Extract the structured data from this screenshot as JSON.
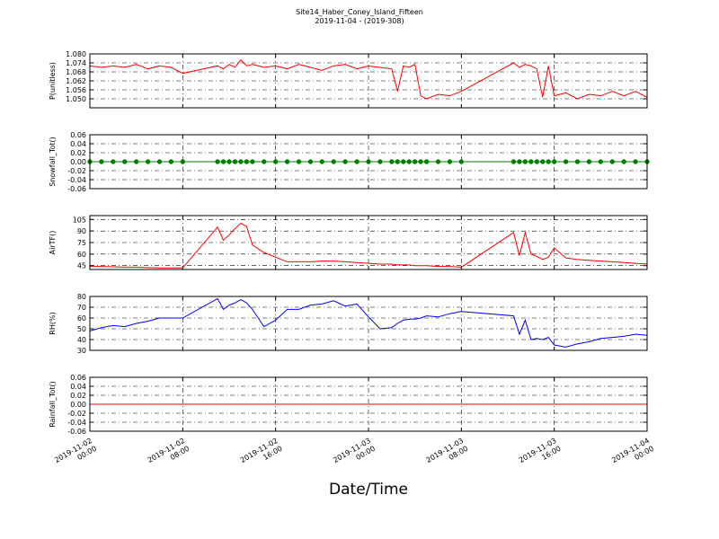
{
  "title": "Site14_Haber_Coney_Island_Fifteen",
  "subtitle": "2019-11-04 - (2019-308)",
  "xlabel": "Date/Time",
  "chart_data": [
    {
      "type": "line",
      "ylabel": "P(unitless)",
      "color": "#ff0000",
      "grid": true,
      "xlim": [
        "2019-11-02 00:00",
        "2019-11-04 00:00"
      ],
      "xticks": [
        "2019-11-02 00:00",
        "2019-11-02 08:00",
        "2019-11-02 16:00",
        "2019-11-03 00:00",
        "2019-11-03 08:00",
        "2019-11-03 16:00",
        "2019-11-04 00:00"
      ],
      "ylim": [
        1.044,
        1.08
      ],
      "yticks": [
        {
          "value": 1.05,
          "label": "1.050"
        },
        1.056,
        1.062,
        1.068,
        1.074,
        {
          "value": 1.08,
          "label": "1.080"
        }
      ],
      "x": [
        "2019-11-02 00:00",
        "2019-11-02 01:00",
        "2019-11-02 02:00",
        "2019-11-02 03:00",
        "2019-11-02 04:00",
        "2019-11-02 05:00",
        "2019-11-02 06:00",
        "2019-11-02 07:00",
        "2019-11-02 08:00",
        "2019-11-02 11:00",
        "2019-11-02 11:30",
        "2019-11-02 12:00",
        "2019-11-02 12:30",
        "2019-11-02 13:00",
        "2019-11-02 13:30",
        "2019-11-02 14:00",
        "2019-11-02 15:00",
        "2019-11-02 16:00",
        "2019-11-02 17:00",
        "2019-11-02 18:00",
        "2019-11-02 19:00",
        "2019-11-02 20:00",
        "2019-11-02 21:00",
        "2019-11-02 22:00",
        "2019-11-02 23:00",
        "2019-11-03 00:00",
        "2019-11-03 01:00",
        "2019-11-03 02:00",
        "2019-11-03 02:30",
        "2019-11-03 03:00",
        "2019-11-03 03:30",
        "2019-11-03 04:00",
        "2019-11-03 04:30",
        "2019-11-03 05:00",
        "2019-11-03 06:00",
        "2019-11-03 07:00",
        "2019-11-03 08:00",
        "2019-11-03 12:30",
        "2019-11-03 13:00",
        "2019-11-03 13:30",
        "2019-11-03 14:00",
        "2019-11-03 14:30",
        "2019-11-03 15:00",
        "2019-11-03 15:30",
        "2019-11-03 16:00",
        "2019-11-03 17:00",
        "2019-11-03 18:00",
        "2019-11-03 19:00",
        "2019-11-03 20:00",
        "2019-11-03 21:00",
        "2019-11-03 22:00",
        "2019-11-03 23:00",
        "2019-11-04 00:00"
      ],
      "values": [
        1.072,
        1.071,
        1.072,
        1.071,
        1.073,
        1.07,
        1.072,
        1.071,
        1.067,
        1.072,
        1.07,
        1.073,
        1.071,
        1.076,
        1.072,
        1.073,
        1.071,
        1.072,
        1.07,
        1.073,
        1.071,
        1.069,
        1.072,
        1.073,
        1.07,
        1.072,
        1.071,
        1.07,
        1.055,
        1.072,
        1.071,
        1.073,
        1.052,
        1.05,
        1.053,
        1.052,
        1.055,
        1.074,
        1.071,
        1.073,
        1.072,
        1.07,
        1.051,
        1.072,
        1.052,
        1.054,
        1.05,
        1.053,
        1.052,
        1.055,
        1.052,
        1.055,
        1.051
      ]
    },
    {
      "type": "line",
      "ylabel": "Snowfall_Tot()",
      "color": "#008000",
      "marker": "o",
      "grid": true,
      "xlim": [
        "2019-11-02 00:00",
        "2019-11-04 00:00"
      ],
      "xticks": [
        "2019-11-02 00:00",
        "2019-11-02 08:00",
        "2019-11-02 16:00",
        "2019-11-03 00:00",
        "2019-11-03 08:00",
        "2019-11-03 16:00",
        "2019-11-04 00:00"
      ],
      "ylim": [
        -0.06,
        0.06
      ],
      "yticks": [
        -0.06,
        -0.04,
        -0.02,
        {
          "value": 0,
          "label": "0.00"
        },
        0.02,
        0.04,
        0.06
      ],
      "x": [
        "2019-11-02 00:00",
        "2019-11-02 01:00",
        "2019-11-02 02:00",
        "2019-11-02 03:00",
        "2019-11-02 04:00",
        "2019-11-02 05:00",
        "2019-11-02 06:00",
        "2019-11-02 07:00",
        "2019-11-02 08:00",
        "2019-11-02 11:00",
        "2019-11-02 11:30",
        "2019-11-02 12:00",
        "2019-11-02 12:30",
        "2019-11-02 13:00",
        "2019-11-02 13:30",
        "2019-11-02 14:00",
        "2019-11-02 15:00",
        "2019-11-02 16:00",
        "2019-11-02 17:00",
        "2019-11-02 18:00",
        "2019-11-02 19:00",
        "2019-11-02 20:00",
        "2019-11-02 21:00",
        "2019-11-02 22:00",
        "2019-11-02 23:00",
        "2019-11-03 00:00",
        "2019-11-03 01:00",
        "2019-11-03 02:00",
        "2019-11-03 02:30",
        "2019-11-03 03:00",
        "2019-11-03 03:30",
        "2019-11-03 04:00",
        "2019-11-03 04:30",
        "2019-11-03 05:00",
        "2019-11-03 06:00",
        "2019-11-03 07:00",
        "2019-11-03 08:00",
        "2019-11-03 12:30",
        "2019-11-03 13:00",
        "2019-11-03 13:30",
        "2019-11-03 14:00",
        "2019-11-03 14:30",
        "2019-11-03 15:00",
        "2019-11-03 15:30",
        "2019-11-03 16:00",
        "2019-11-03 17:00",
        "2019-11-03 18:00",
        "2019-11-03 19:00",
        "2019-11-03 20:00",
        "2019-11-03 21:00",
        "2019-11-03 22:00",
        "2019-11-03 23:00",
        "2019-11-04 00:00"
      ],
      "values": [
        0,
        0,
        0,
        0,
        0,
        0,
        0,
        0,
        0,
        0,
        0,
        0,
        0,
        0,
        0,
        0,
        0,
        0,
        0,
        0,
        0,
        0,
        0,
        0,
        0,
        0,
        0,
        0,
        0,
        0,
        0,
        0,
        0,
        0,
        0,
        0,
        0,
        0,
        0,
        0,
        0,
        0,
        0,
        0,
        0,
        0,
        0,
        0,
        0,
        0,
        0,
        0,
        0
      ]
    },
    {
      "type": "line",
      "ylabel": "AirTF()",
      "color": "#ff0000",
      "grid": true,
      "xlim": [
        "2019-11-02 00:00",
        "2019-11-04 00:00"
      ],
      "xticks": [
        "2019-11-02 00:00",
        "2019-11-02 08:00",
        "2019-11-02 16:00",
        "2019-11-03 00:00",
        "2019-11-03 08:00",
        "2019-11-03 16:00",
        "2019-11-04 00:00"
      ],
      "ylim": [
        40,
        110
      ],
      "yticks": [
        45,
        60,
        75,
        90,
        105
      ],
      "x": [
        "2019-11-02 00:00",
        "2019-11-02 01:00",
        "2019-11-02 02:00",
        "2019-11-02 03:00",
        "2019-11-02 04:00",
        "2019-11-02 05:00",
        "2019-11-02 06:00",
        "2019-11-02 07:00",
        "2019-11-02 08:00",
        "2019-11-02 11:00",
        "2019-11-02 11:30",
        "2019-11-02 12:00",
        "2019-11-02 12:30",
        "2019-11-02 13:00",
        "2019-11-02 13:30",
        "2019-11-02 14:00",
        "2019-11-02 15:00",
        "2019-11-02 16:00",
        "2019-11-02 17:00",
        "2019-11-02 18:00",
        "2019-11-02 19:00",
        "2019-11-02 20:00",
        "2019-11-02 21:00",
        "2019-11-02 22:00",
        "2019-11-02 23:00",
        "2019-11-03 00:00",
        "2019-11-03 01:00",
        "2019-11-03 02:00",
        "2019-11-03 02:30",
        "2019-11-03 03:00",
        "2019-11-03 03:30",
        "2019-11-03 04:00",
        "2019-11-03 04:30",
        "2019-11-03 05:00",
        "2019-11-03 06:00",
        "2019-11-03 07:00",
        "2019-11-03 08:00",
        "2019-11-03 12:30",
        "2019-11-03 13:00",
        "2019-11-03 13:30",
        "2019-11-03 14:00",
        "2019-11-03 14:30",
        "2019-11-03 15:00",
        "2019-11-03 15:30",
        "2019-11-03 16:00",
        "2019-11-03 17:00",
        "2019-11-03 18:00",
        "2019-11-03 19:00",
        "2019-11-03 20:00",
        "2019-11-03 21:00",
        "2019-11-03 22:00",
        "2019-11-03 23:00",
        "2019-11-04 00:00"
      ],
      "values": [
        44,
        44,
        43.5,
        43,
        43,
        42.5,
        42,
        42,
        42,
        95,
        78,
        85,
        93,
        100,
        96,
        72,
        62,
        56,
        50,
        50,
        50,
        51,
        51,
        50,
        49,
        48,
        47,
        47,
        46,
        46,
        46,
        45,
        45,
        45,
        44,
        44,
        43,
        88,
        58,
        88,
        60,
        57,
        53,
        56,
        68,
        55,
        53,
        52,
        51,
        50,
        49,
        48,
        47
      ]
    },
    {
      "type": "line",
      "ylabel": "RH(%)",
      "color": "#0000ff",
      "grid": true,
      "xlim": [
        "2019-11-02 00:00",
        "2019-11-04 00:00"
      ],
      "xticks": [
        "2019-11-02 00:00",
        "2019-11-02 08:00",
        "2019-11-02 16:00",
        "2019-11-03 00:00",
        "2019-11-03 08:00",
        "2019-11-03 16:00",
        "2019-11-04 00:00"
      ],
      "ylim": [
        30,
        80
      ],
      "yticks": [
        30,
        40,
        50,
        60,
        70,
        80
      ],
      "x": [
        "2019-11-02 00:00",
        "2019-11-02 01:00",
        "2019-11-02 02:00",
        "2019-11-02 03:00",
        "2019-11-02 04:00",
        "2019-11-02 05:00",
        "2019-11-02 06:00",
        "2019-11-02 07:00",
        "2019-11-02 08:00",
        "2019-11-02 11:00",
        "2019-11-02 11:30",
        "2019-11-02 12:00",
        "2019-11-02 12:30",
        "2019-11-02 13:00",
        "2019-11-02 13:30",
        "2019-11-02 14:00",
        "2019-11-02 15:00",
        "2019-11-02 16:00",
        "2019-11-02 17:00",
        "2019-11-02 18:00",
        "2019-11-02 19:00",
        "2019-11-02 20:00",
        "2019-11-02 21:00",
        "2019-11-02 22:00",
        "2019-11-02 23:00",
        "2019-11-03 00:00",
        "2019-11-03 01:00",
        "2019-11-03 02:00",
        "2019-11-03 02:30",
        "2019-11-03 03:00",
        "2019-11-03 03:30",
        "2019-11-03 04:00",
        "2019-11-03 04:30",
        "2019-11-03 05:00",
        "2019-11-03 06:00",
        "2019-11-03 07:00",
        "2019-11-03 08:00",
        "2019-11-03 12:30",
        "2019-11-03 13:00",
        "2019-11-03 13:30",
        "2019-11-03 14:00",
        "2019-11-03 14:30",
        "2019-11-03 15:00",
        "2019-11-03 15:30",
        "2019-11-03 16:00",
        "2019-11-03 17:00",
        "2019-11-03 18:00",
        "2019-11-03 19:00",
        "2019-11-03 20:00",
        "2019-11-03 21:00",
        "2019-11-03 22:00",
        "2019-11-03 23:00",
        "2019-11-04 00:00"
      ],
      "values": [
        48,
        51,
        53,
        52,
        55,
        57,
        60,
        60,
        60,
        78,
        68,
        72,
        74,
        77,
        74,
        68,
        52,
        58,
        68,
        68,
        72,
        73,
        76,
        71,
        73,
        61,
        50,
        51,
        55,
        58,
        59,
        59,
        60,
        62,
        61,
        64,
        66,
        62,
        45,
        58,
        40,
        41,
        40,
        42,
        35,
        33,
        36,
        38,
        41,
        42,
        43,
        45,
        44
      ]
    },
    {
      "type": "line",
      "ylabel": "Rainfall_Tot()",
      "color": "#ff0000",
      "grid": true,
      "xlim": [
        "2019-11-02 00:00",
        "2019-11-04 00:00"
      ],
      "xticks": [
        "2019-11-02 00:00",
        "2019-11-02 08:00",
        "2019-11-02 16:00",
        "2019-11-03 00:00",
        "2019-11-03 08:00",
        "2019-11-03 16:00",
        "2019-11-04 00:00"
      ],
      "ylim": [
        -0.06,
        0.06
      ],
      "yticks": [
        -0.06,
        -0.04,
        -0.02,
        {
          "value": 0,
          "label": "0.00"
        },
        0.02,
        0.04,
        0.06
      ],
      "x": [
        "2019-11-02 00:00",
        "2019-11-02 01:00",
        "2019-11-02 02:00",
        "2019-11-02 03:00",
        "2019-11-02 04:00",
        "2019-11-02 05:00",
        "2019-11-02 06:00",
        "2019-11-02 07:00",
        "2019-11-02 08:00",
        "2019-11-02 11:00",
        "2019-11-02 11:30",
        "2019-11-02 12:00",
        "2019-11-02 12:30",
        "2019-11-02 13:00",
        "2019-11-02 13:30",
        "2019-11-02 14:00",
        "2019-11-02 15:00",
        "2019-11-02 16:00",
        "2019-11-02 17:00",
        "2019-11-02 18:00",
        "2019-11-02 19:00",
        "2019-11-02 20:00",
        "2019-11-02 21:00",
        "2019-11-02 22:00",
        "2019-11-02 23:00",
        "2019-11-03 00:00",
        "2019-11-03 01:00",
        "2019-11-03 02:00",
        "2019-11-03 02:30",
        "2019-11-03 03:00",
        "2019-11-03 03:30",
        "2019-11-03 04:00",
        "2019-11-03 04:30",
        "2019-11-03 05:00",
        "2019-11-03 06:00",
        "2019-11-03 07:00",
        "2019-11-03 08:00",
        "2019-11-03 12:30",
        "2019-11-03 13:00",
        "2019-11-03 13:30",
        "2019-11-03 14:00",
        "2019-11-03 14:30",
        "2019-11-03 15:00",
        "2019-11-03 15:30",
        "2019-11-03 16:00",
        "2019-11-03 17:00",
        "2019-11-03 18:00",
        "2019-11-03 19:00",
        "2019-11-03 20:00",
        "2019-11-03 21:00",
        "2019-11-03 22:00",
        "2019-11-03 23:00",
        "2019-11-04 00:00"
      ],
      "values": [
        0,
        0,
        0,
        0,
        0,
        0,
        0,
        0,
        0,
        0,
        0,
        0,
        0,
        0,
        0,
        0,
        0,
        0,
        0,
        0,
        0,
        0,
        0,
        0,
        0,
        0,
        0,
        0,
        0,
        0,
        0,
        0,
        0,
        0,
        0,
        0,
        0,
        0,
        0,
        0,
        0,
        0,
        0,
        0,
        0,
        0,
        0,
        0,
        0,
        0,
        0,
        0,
        0
      ]
    }
  ]
}
